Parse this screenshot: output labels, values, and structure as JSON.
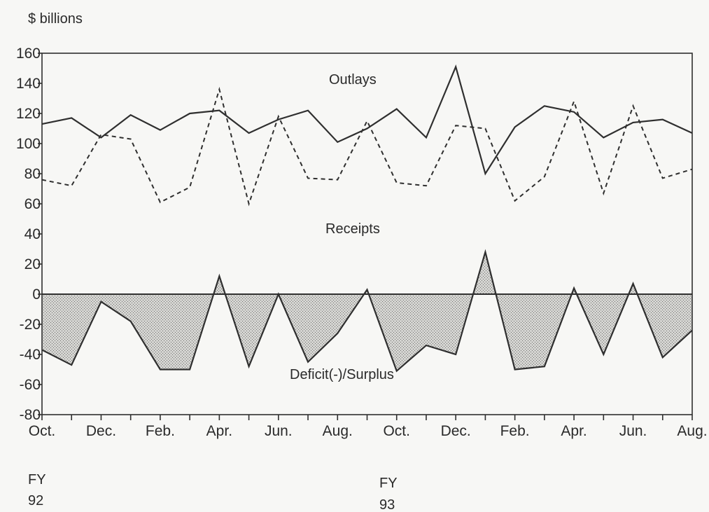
{
  "chart_data": {
    "type": "line",
    "unit_label": "$ billions",
    "x_tick_labels": [
      "Oct.",
      "Dec.",
      "Feb.",
      "Apr.",
      "Jun.",
      "Aug.",
      "Oct.",
      "Dec.",
      "Feb.",
      "Apr.",
      "Jun.",
      "Aug."
    ],
    "fiscal_year_labels": [
      {
        "prefix": "FY",
        "year": "92"
      },
      {
        "prefix": "FY",
        "year": "93"
      }
    ],
    "y_ticks": [
      160,
      140,
      120,
      100,
      80,
      60,
      40,
      20,
      0,
      -20,
      -40,
      -60,
      -80
    ],
    "ylim": [
      -80,
      160
    ],
    "months_count": 23,
    "series": [
      {
        "name": "Outlays",
        "style": "solid",
        "values": [
          113,
          117,
          104,
          119,
          109,
          120,
          122,
          107,
          116,
          122,
          101,
          110,
          123,
          104,
          151,
          80,
          111,
          125,
          121,
          104,
          114,
          116,
          107
        ]
      },
      {
        "name": "Receipts",
        "style": "dashed",
        "values": [
          76,
          72,
          106,
          103,
          61,
          71,
          136,
          60,
          118,
          77,
          76,
          115,
          74,
          72,
          112,
          110,
          62,
          78,
          128,
          67,
          125,
          77,
          83
        ]
      },
      {
        "name": "Deficit(-)/Surplus",
        "style": "filled-area",
        "values": [
          -37,
          -47,
          -5,
          -18,
          -50,
          -50,
          12,
          -48,
          0,
          -45,
          -26,
          3,
          -51,
          -34,
          -40,
          28,
          -50,
          -48,
          4,
          -40,
          7,
          -42,
          -24
        ]
      }
    ],
    "grid": false,
    "colors": {
      "line": "#2f2f2f",
      "fill": "#c9c9c7",
      "background": "#f7f7f5"
    }
  }
}
